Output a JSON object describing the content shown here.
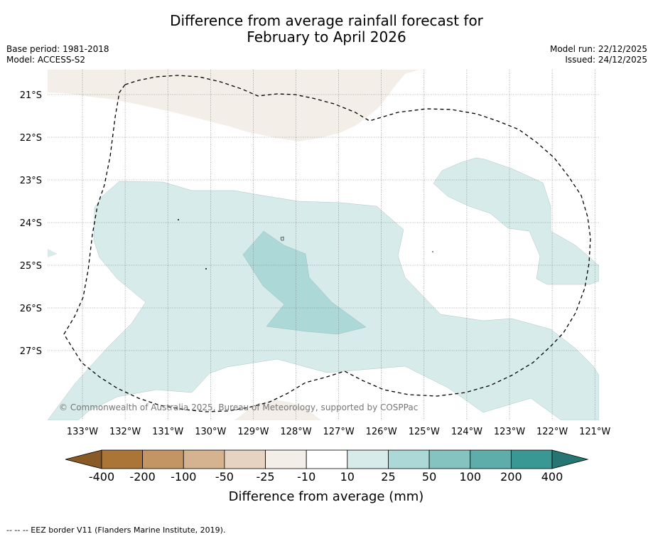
{
  "title_line1": "Difference from average rainfall forecast for",
  "title_line2": "February to April 2026",
  "base_period": "Base period: 1981-2018",
  "model": "Model: ACCESS-S2",
  "model_run": "Model run: 22/12/2025",
  "issued": "Issued: 24/12/2025",
  "copyright": "© Commonwealth of Australia 2025, Bureau of Meteorology, supported by COSPPac",
  "latitude_labels": [
    "21°S",
    "22°S",
    "23°S",
    "24°S",
    "25°S",
    "26°S",
    "27°S"
  ],
  "longitude_labels": [
    "133°W",
    "132°W",
    "131°W",
    "130°W",
    "129°W",
    "128°W",
    "127°W",
    "126°W",
    "125°W",
    "124°W",
    "123°W",
    "122°W",
    "121°W"
  ],
  "colorbar": {
    "label": "Difference from average (mm)",
    "ticks": [
      "-400",
      "-200",
      "-100",
      "-50",
      "-25",
      "-10",
      "10",
      "25",
      "50",
      "100",
      "200",
      "400"
    ],
    "colors": [
      "#ab7538",
      "#c39464",
      "#d5b290",
      "#e6d3c2",
      "#f3eee8",
      "#ffffff",
      "#d6ebea",
      "#acd8d7",
      "#85c3c1",
      "#5eadab",
      "#3a9894"
    ],
    "under_color": "#8a5a26",
    "over_color": "#257672"
  },
  "legend_note": "--  --  -- EEZ border V11 (Flanders Marine Institute, 2019)."
}
